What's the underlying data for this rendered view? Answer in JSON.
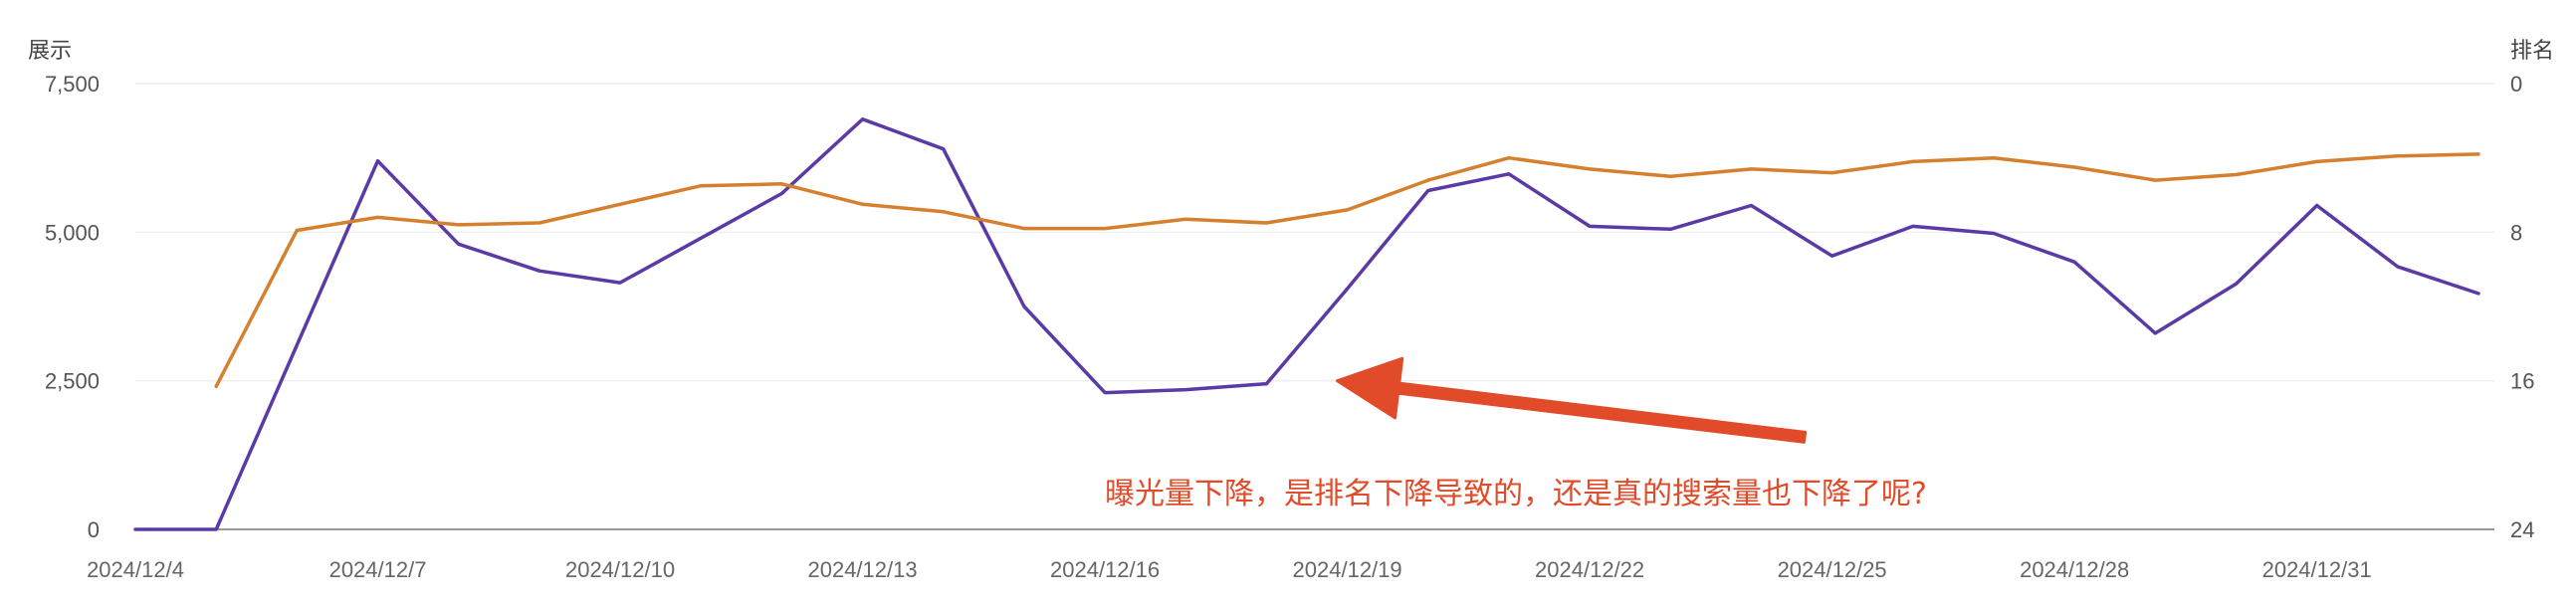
{
  "chart_data": {
    "type": "line",
    "title": "",
    "ylabel_left": "展示",
    "ylabel_right": "排名",
    "ylim_left": [
      0,
      7500
    ],
    "yticks_left": [
      0,
      2500,
      5000,
      7500
    ],
    "ytick_labels_left": [
      "0",
      "2,500",
      "5,000",
      "7,500"
    ],
    "ylim_right": [
      24,
      0
    ],
    "yticks_right": [
      24,
      16,
      8,
      0
    ],
    "ytick_labels_right": [
      "24",
      "16",
      "8",
      "0"
    ],
    "right_axis_inverted": true,
    "grid": true,
    "x": [
      "2024/12/4",
      "2024/12/5",
      "2024/12/6",
      "2024/12/7",
      "2024/12/8",
      "2024/12/9",
      "2024/12/10",
      "2024/12/11",
      "2024/12/12",
      "2024/12/13",
      "2024/12/14",
      "2024/12/15",
      "2024/12/16",
      "2024/12/17",
      "2024/12/18",
      "2024/12/19",
      "2024/12/20",
      "2024/12/21",
      "2024/12/22",
      "2024/12/23",
      "2024/12/24",
      "2024/12/25",
      "2024/12/26",
      "2024/12/27",
      "2024/12/28",
      "2024/12/29",
      "2024/12/30",
      "2024/12/31",
      "2025/1/1",
      "2025/1/2"
    ],
    "xtick_labels": [
      "2024/12/4",
      "2024/12/7",
      "2024/12/10",
      "2024/12/13",
      "2024/12/16",
      "2024/12/19",
      "2024/12/22",
      "2024/12/25",
      "2024/12/28",
      "2024/12/31"
    ],
    "series": [
      {
        "name": "",
        "axis": "left",
        "color": "#5b3aa6",
        "values": [
          0,
          0,
          3100,
          6200,
          4800,
          4350,
          4150,
          4900,
          5650,
          6900,
          6400,
          3750,
          2300,
          2350,
          2450,
          4050,
          5700,
          5980,
          5100,
          5050,
          5450,
          4600,
          5100,
          4980,
          4500,
          3300,
          4130,
          5450,
          4420,
          3970
        ]
      },
      {
        "name": "",
        "axis": "right",
        "color": "#d4802f",
        "values": [
          null,
          16.3,
          7.9,
          7.2,
          7.6,
          7.5,
          6.5,
          5.5,
          5.4,
          6.5,
          6.9,
          7.8,
          7.8,
          7.3,
          7.5,
          6.8,
          5.2,
          4.0,
          4.6,
          5.0,
          4.6,
          4.8,
          4.2,
          4.0,
          4.5,
          5.2,
          4.9,
          4.2,
          3.9,
          3.8
        ]
      }
    ],
    "annotation": {
      "text": "曝光量下降，是排名下降导致的，还是真的搜索量也下降了呢?",
      "color": "#e14b2a",
      "arrow_from": [
        "2024/12/27",
        1300
      ],
      "arrow_to": [
        "2024/12/19",
        2500
      ]
    }
  },
  "colors": {
    "grid": "#eeeeee",
    "baseline": "#999999",
    "annotation": "#e14b2a"
  }
}
